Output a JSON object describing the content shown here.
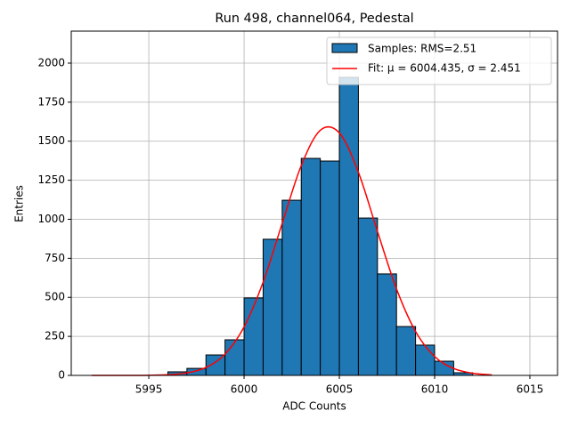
{
  "chart_data": {
    "type": "histogram",
    "title": "Run 498, channel064, Pedestal",
    "x_label": "ADC Counts",
    "y_label": "Entries",
    "xlim": [
      5990.93,
      6016.45
    ],
    "ylim": [
      0,
      2205
    ],
    "xticks": [
      5995,
      6000,
      6005,
      6010,
      6015
    ],
    "yticks": [
      0,
      250,
      500,
      750,
      1000,
      1250,
      1500,
      1750,
      2000
    ],
    "grid": true,
    "legend": "upper right",
    "histogram": {
      "name": "Samples: RMS=2.51",
      "color": "#1f77b4",
      "edge_color": "#000000",
      "bins": [
        5996,
        5997,
        5998,
        5999,
        6000,
        6001,
        6002,
        6003,
        6004,
        6005,
        6006,
        6007,
        6008,
        6009,
        6010,
        6011,
        6012
      ],
      "counts": [
        23,
        45,
        131,
        228,
        496,
        872,
        1122,
        1390,
        1373,
        1909,
        1008,
        650,
        313,
        194,
        91,
        17
      ]
    },
    "fit": {
      "name": "Fit: μ = 6004.435, σ = 2.451",
      "color": "#ff0000",
      "x": [
        5992,
        5993,
        5994,
        5995,
        5996,
        5997,
        5998,
        5999,
        6000,
        6001,
        6002,
        6003,
        6004,
        6005,
        6006,
        6007,
        6008,
        6009,
        6010,
        6011,
        6012,
        6013
      ],
      "values": [
        0,
        0.03,
        0.19,
        0.97,
        4.3,
        16,
        50.8,
        136.3,
        310.4,
        597.5,
        973.8,
        1343.8,
        1570.1,
        1553.2,
        1300.9,
        922.4,
        553.8,
        281.5,
        121.1,
        44.2,
        13.6,
        3.6
      ]
    }
  }
}
